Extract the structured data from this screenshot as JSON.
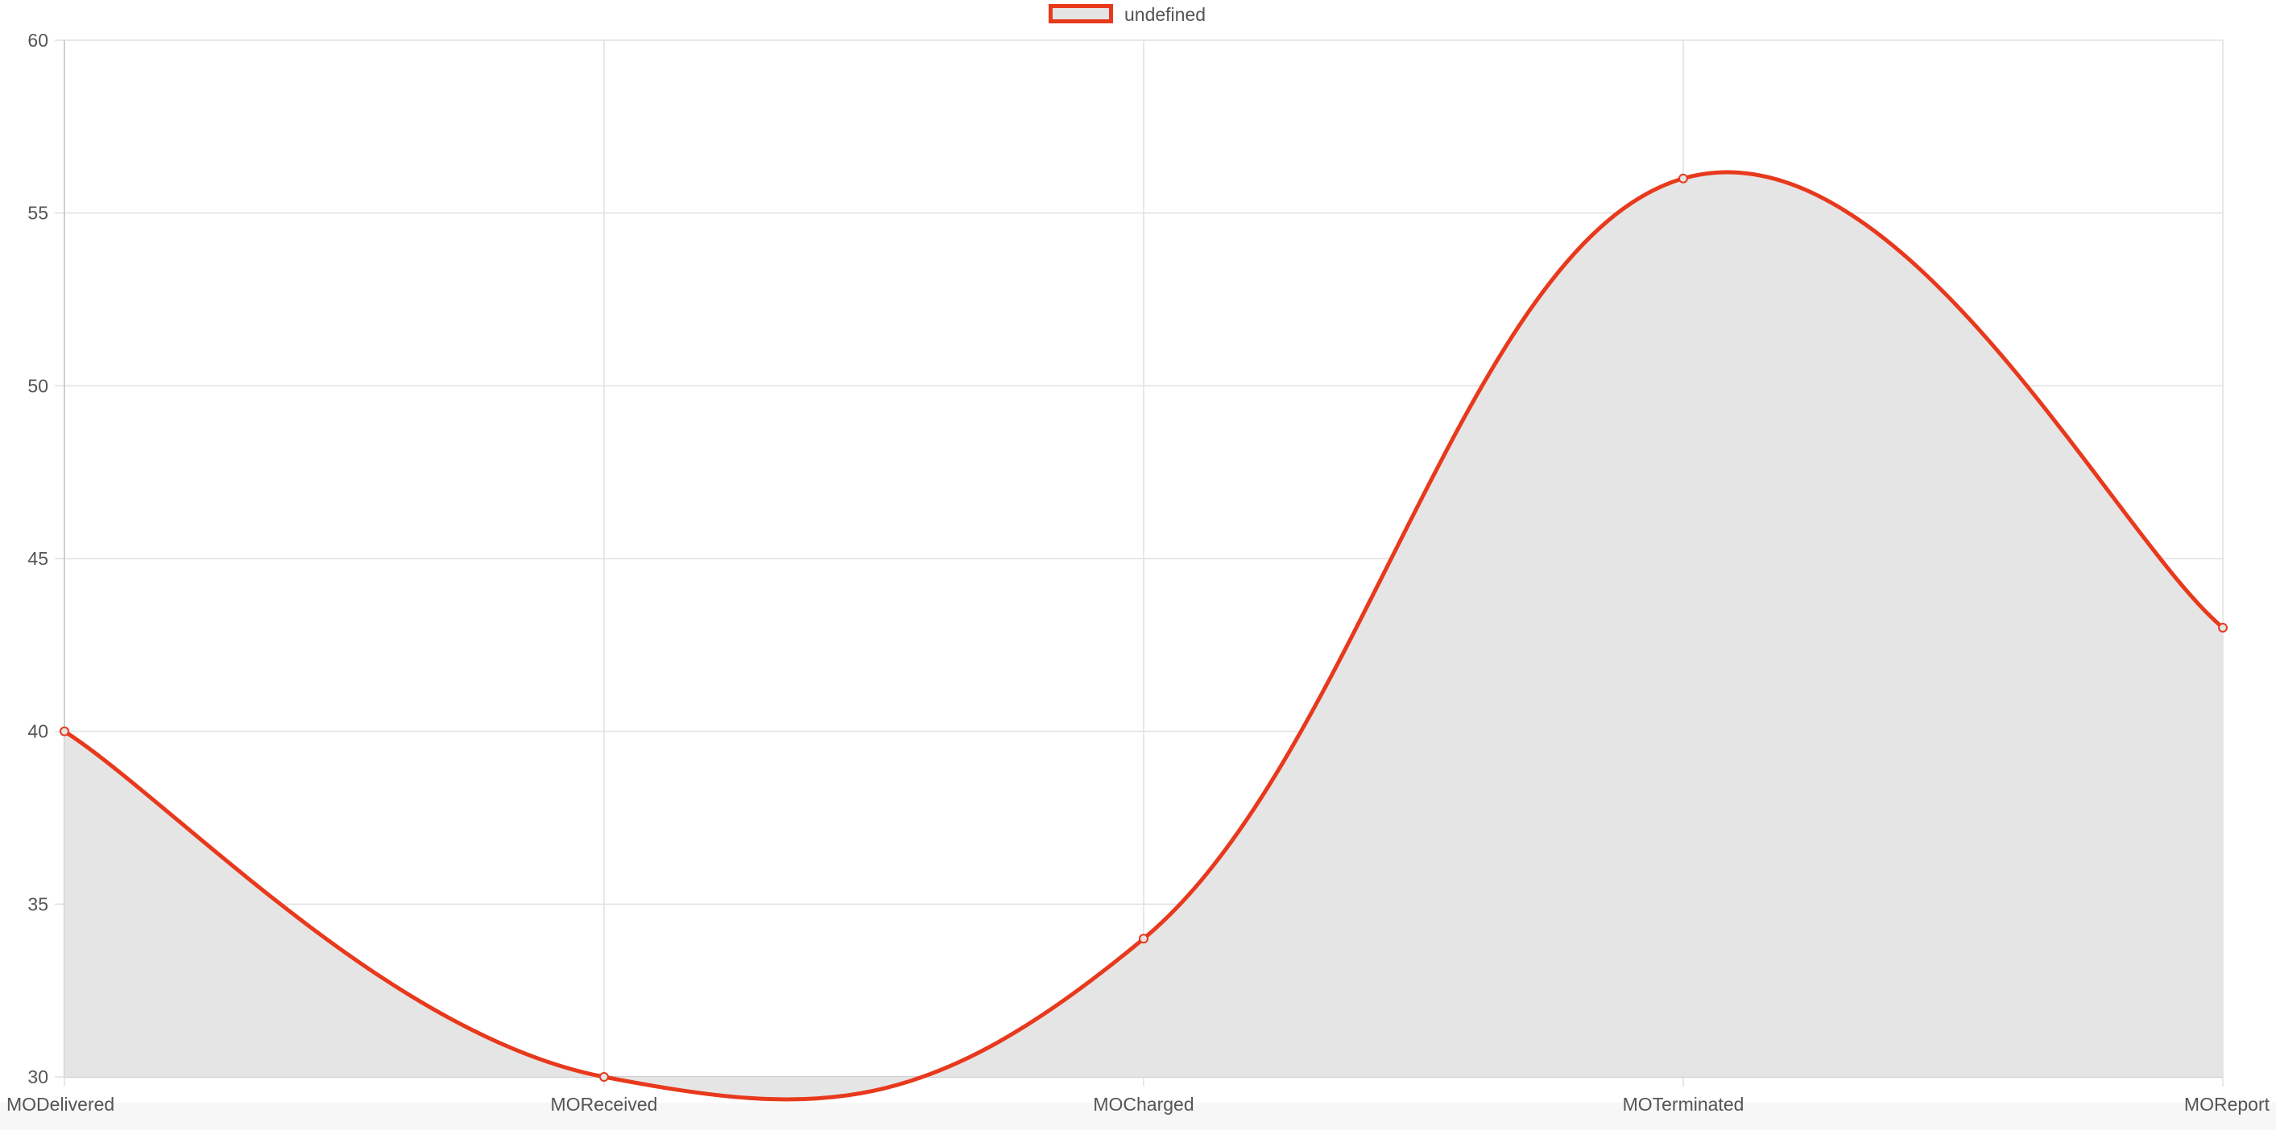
{
  "legend": {
    "label": "undefined"
  },
  "colors": {
    "line": "#e8391d",
    "fill": "#e4e4e4",
    "grid": "#e0e0e0",
    "text": "#555555"
  },
  "chart_data": {
    "type": "area",
    "categories": [
      "MODelivered",
      "MOReceived",
      "MOCharged",
      "MOTerminated",
      "MOReport"
    ],
    "series": [
      {
        "name": "undefined",
        "values": [
          40,
          30,
          34,
          56,
          43
        ]
      }
    ],
    "ylim": [
      30,
      60
    ],
    "yticks": [
      30,
      35,
      40,
      45,
      50,
      55,
      60
    ],
    "grid": true,
    "legend_position": "top-center",
    "curve": "smooth"
  }
}
